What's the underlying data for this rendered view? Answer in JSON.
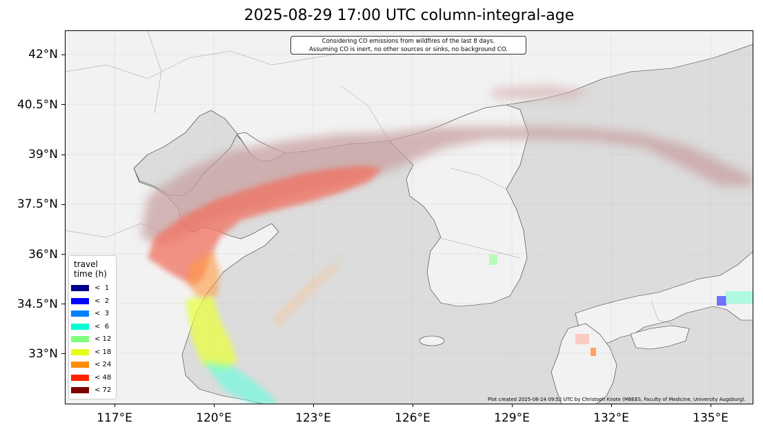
{
  "title": "2025-08-29 17:00 UTC column-integral-age",
  "note_line1": "Considering CO emissions from wildfires of the last 8 days.",
  "note_line2": "Assuming CO is inert, no other sources or sinks, no background CO.",
  "credit": "Plot created 2025-08-24 09:52 UTC by Christoph Knote (MBEES, Faculty of Medicine, University Augsburg).",
  "lat_labels": [
    "42°N",
    "40.5°N",
    "39°N",
    "37.5°N",
    "36°N",
    "34.5°N",
    "33°N"
  ],
  "lon_labels": [
    "117°E",
    "120°E",
    "123°E",
    "126°E",
    "129°E",
    "132°E",
    "135°E"
  ],
  "legend": {
    "title_line1": "travel",
    "title_line2": "time (h)",
    "items": [
      {
        "label": "<  1",
        "color": "#00008b"
      },
      {
        "label": "<  2",
        "color": "#0000ff"
      },
      {
        "label": "<  3",
        "color": "#0080ff"
      },
      {
        "label": "<  6",
        "color": "#00ffd5"
      },
      {
        "label": "< 12",
        "color": "#80ff80"
      },
      {
        "label": "< 18",
        "color": "#e6ff1a"
      },
      {
        "label": "< 24",
        "color": "#ff8c00"
      },
      {
        "label": "< 48",
        "color": "#ff2000"
      },
      {
        "label": "< 72",
        "color": "#800000"
      }
    ]
  },
  "colors": {
    "land": "#f2f2f2",
    "sea": "#dcdcdc",
    "plume_old": "#c8a0a0",
    "plume_48": "#f07060"
  }
}
